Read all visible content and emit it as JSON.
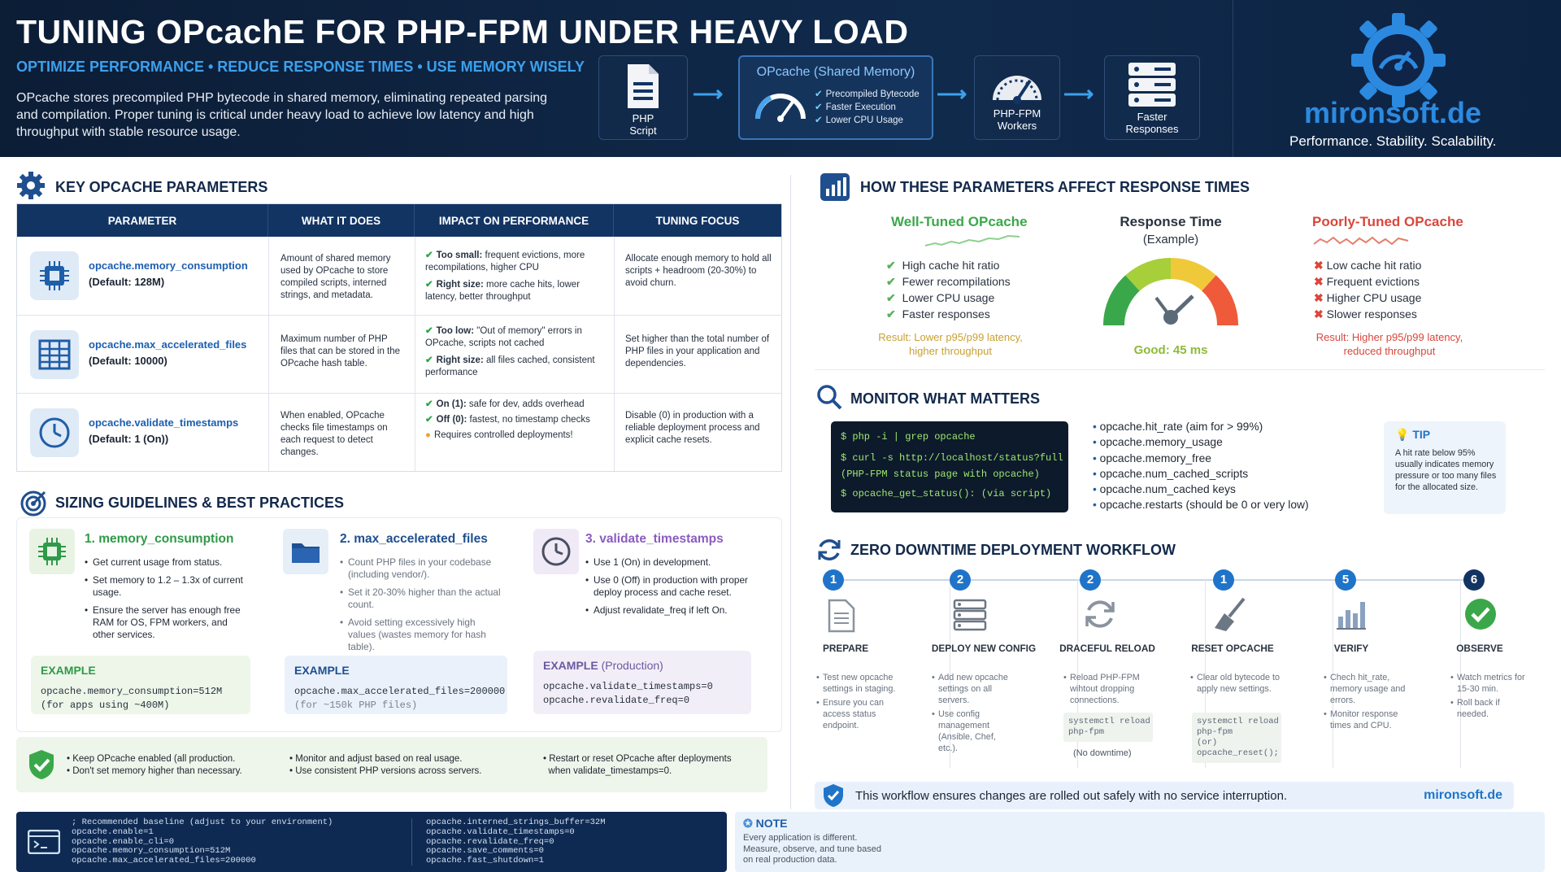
{
  "header": {
    "title": "TUNING OPcachE FOR PHP-FPM UNDER HEAVY LOAD",
    "subtitle": "OPTIMIZE PERFORMANCE • REDUCE RESPONSE TIMES • USE MEMORY WISELY",
    "description": "OPcache stores precompiled PHP bytecode in shared memory, eliminating repeated parsing and compilation. Proper tuning is critical under heavy load to achieve low latency and high throughput with stable resource usage.",
    "flow": {
      "php_script": "PHP Script",
      "opcache_title": "OPcache (Shared Memory)",
      "opcache_items": [
        "Precompiled Bytecode",
        "Faster Execution",
        "Lower CPU Usage"
      ],
      "workers": "PHP-FPM Workers",
      "responses": "Faster Responses"
    },
    "brand": "mironsoft.de",
    "tagline": "Performance. Stability. Scalability."
  },
  "params": {
    "title": "KEY OPCACHE PARAMETERS",
    "columns": [
      "PARAMETER",
      "WHAT IT DOES",
      "IMPACT ON PERFORMANCE",
      "TUNING FOCUS"
    ],
    "rows": [
      {
        "name": "opcache.memory_consumption",
        "default": "(Default: 128M)",
        "what": "Amount of shared memory used by OPcache to store compiled scripts, interned strings, and metadata.",
        "impact1_label": "Too small:",
        "impact1": "frequent evictions, more recompilations, higher CPU",
        "impact2_label": "Right size:",
        "impact2": "more cache hits, lower latency, better throughput",
        "tuning": "Allocate enough memory to hold all scripts + headroom (20-30%) to avoid churn."
      },
      {
        "name": "opcache.max_accelerated_files",
        "default": "(Default: 10000)",
        "what": "Maximum number of PHP files that can be stored in the OPcache hash table.",
        "impact1_label": "Too low:",
        "impact1": "\"Out of memory\" errors in OPcache, scripts not cached",
        "impact2_label": "Right size:",
        "impact2": "all files cached, consistent performance",
        "tuning": "Set higher than the total number of PHP files in your application and dependencies."
      },
      {
        "name": "opcache.validate_timestamps",
        "default": "(Default: 1 (On))",
        "what": "When enabled, OPcache checks file timestamps on each request to detect changes.",
        "impact1_label": "On (1):",
        "impact1": "safe for dev, adds overhead",
        "impact2_label": "Off (0):",
        "impact2": "fastest, no timestamp checks",
        "impact3": "Requires controlled deployments!",
        "tuning": "Disable (0) in production with a reliable deployment process and explicit cache resets."
      }
    ]
  },
  "sizing": {
    "title": "SIZING GUIDELINES & BEST PRACTICES",
    "cards": [
      {
        "heading": "1. memory_consumption",
        "items": [
          "Get current usage from status.",
          "Set memory to 1.2 – 1.3x of current usage.",
          "Ensure the server has enough free RAM for OS, FPM workers, and other services."
        ],
        "example_label": "EXAMPLE",
        "example_code": "opcache.memory_consumption=512M",
        "example_note": "(for apps using ~400M)"
      },
      {
        "heading": "2. max_accelerated_files",
        "items": [
          "Count PHP files in your codebase (including vendor/).",
          "Set it 20-30% higher than the actual count.",
          "Avoid setting excessively high values (wastes memory for hash table)."
        ],
        "example_label": "EXAMPLE",
        "example_code": "opcache.max_accelerated_files=200000",
        "example_note": "(for ~150k PHP files)"
      },
      {
        "heading": "3. validate_timestamps",
        "items": [
          "Use 1 (On) in development.",
          "Use 0 (Off) in production with proper deploy process and cache reset.",
          "Adjust revalidate_freq if left On."
        ],
        "example_label": "EXAMPLE",
        "example_label_suffix": "(Production)",
        "example_code": "opcache.validate_timestamps=0",
        "example_note": "opcache.revalidate_freq=0"
      }
    ],
    "best": [
      "Keep OPcache enabled (all production.",
      "Don't set memory higher than necessary.",
      "Monitor and adjust based on real usage.",
      "Use consistent PHP versions across servers.",
      "Restart or reset OPcache after deployments",
      "when validate_timestamps=0."
    ]
  },
  "baseline": {
    "left": "; Recommended baseline (adjust to your environment)\nopcache.enable=1\nopcache.enable_cli=0\nopcache.memory_consumption=512M\nopcache.max_accelerated_files=200000",
    "right": "opcache.interned_strings_buffer=32M\nopcache.validate_timestamps=0\nopcache.revalidate_freq=0\nopcache.save_comments=0\nopcache.fast_shutdown=1",
    "note_title": "NOTE",
    "note_text": "Every application is different. Measure, observe, and tune based on real production data."
  },
  "response": {
    "title": "HOW THESE PARAMETERS AFFECT RESPONSE TIMES",
    "good_title": "Well-Tuned OPcache",
    "good_items": [
      "High cache hit ratio",
      "Fewer recompilations",
      "Lower CPU usage",
      "Faster responses"
    ],
    "good_result": "Result: Lower p95/p99 latency, higher throughput",
    "gauge_title": "Response Time",
    "gauge_sub": "(Example)",
    "gauge_value": "Good: 45 ms",
    "bad_title": "Poorly-Tuned OPcache",
    "bad_items": [
      "Low cache hit ratio",
      "Frequent evictions",
      "Higher CPU usage",
      "Slower responses"
    ],
    "bad_result": "Result: Higher p95/p99 latency, reduced throughput"
  },
  "monitor": {
    "title": "MONITOR WHAT MATTERS",
    "code": [
      "$ php -i | grep opcache",
      "$ curl -s http://localhost/status?full",
      "(PHP-FPM status page with opcache)",
      "$ opcache_get_status(): (via script)"
    ],
    "metrics": [
      "opcache.hit_rate (aim for > 99%)",
      "opcache.memory_usage",
      "opcache.memory_free",
      "opcache.num_cached_scripts",
      "opcache.num_cached keys",
      "opcache.restarts (should be 0 or very low)"
    ],
    "tip_title": "TIP",
    "tip_text": "A hit rate below 95% usually indicates memory pressure or too many files for the allocated size."
  },
  "workflow": {
    "title": "ZERO DOWNTIME DEPLOYMENT WORKFLOW",
    "steps": [
      {
        "num": "1",
        "title": "PREPARE",
        "items": [
          "Test new opcache settings in staging.",
          "Ensure you can access status endpoint."
        ]
      },
      {
        "num": "2",
        "title": "DEPLOY NEW CONFIG",
        "items": [
          "Add new opcache settings on all servers.",
          "Use config management (Ansible, Chef, etc.)."
        ]
      },
      {
        "num": "2",
        "title": "DRACEFUL RELOAD",
        "items": [
          "Reload PHP-FPM wihtout dropping connections."
        ],
        "code": "systemctl reload\nphp-fpm",
        "note": "(No downtime)"
      },
      {
        "num": "1",
        "title": "RESET OPCACHE",
        "items": [
          "Clear old bytecode to apply new settings."
        ],
        "code": "systemctl reload\nphp-fpm\n(or)\nopcache_reset();"
      },
      {
        "num": "5",
        "title": "VERIFY",
        "items": [
          "Chech hit_rate, memory usage and errors.",
          "Monitor response times and CPU."
        ]
      },
      {
        "num": "6",
        "title": "OBSERVE",
        "items": [
          "Watch metrics for 15-30 min.",
          "Roll back if needed."
        ]
      }
    ],
    "banner": "This workflow ensures changes are rolled out safely with no service interruption.",
    "banner_brand": "mironsoft.de"
  },
  "colors": {
    "navy": "#0c1d36",
    "accent": "#1f74c9",
    "good": "#3aa84a",
    "bad": "#d9473b"
  }
}
